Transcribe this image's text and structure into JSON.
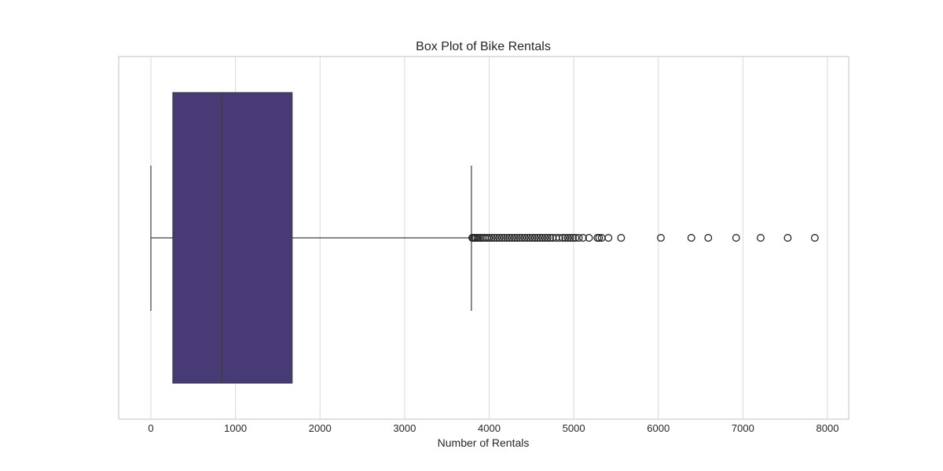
{
  "chart_data": {
    "type": "box",
    "orientation": "horizontal",
    "title": "Box Plot of Bike Rentals",
    "xlabel": "Number of Rentals",
    "ylabel": "",
    "xlim": [
      -400,
      8250
    ],
    "xticks": [
      0,
      1000,
      2000,
      3000,
      4000,
      5000,
      6000,
      7000,
      8000
    ],
    "grid": "vertical",
    "box_color": "#483a74",
    "stats": {
      "whisker_low": 0,
      "q1": 260,
      "median": 840,
      "q3": 1670,
      "whisker_high": 3790
    },
    "outliers": [
      3800,
      3810,
      3825,
      3840,
      3860,
      3880,
      3900,
      3925,
      3950,
      3975,
      4000,
      4030,
      4060,
      4090,
      4120,
      4150,
      4180,
      4210,
      4240,
      4270,
      4300,
      4330,
      4360,
      4390,
      4420,
      4450,
      4480,
      4510,
      4540,
      4570,
      4600,
      4630,
      4660,
      4690,
      4720,
      4750,
      4790,
      4830,
      4870,
      4900,
      4930,
      4960,
      4990,
      5020,
      5060,
      5110,
      5180,
      5280,
      5300,
      5330,
      5410,
      5560,
      6030,
      6390,
      6590,
      6920,
      7210,
      7530,
      7850
    ]
  }
}
